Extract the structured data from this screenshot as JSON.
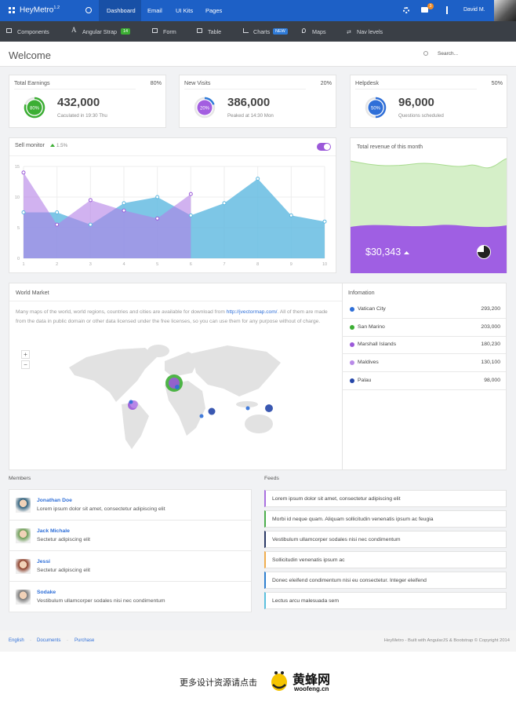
{
  "nav": {
    "brand": "HeyMetro",
    "version": "1.2",
    "items": [
      "Dashboard",
      "Email",
      "UI Kits",
      "Pages"
    ],
    "message_count": "3",
    "user": "David M."
  },
  "subnav": {
    "items": [
      {
        "label": "Components"
      },
      {
        "label": "Angular Strap",
        "badge": "14"
      },
      {
        "label": "Form"
      },
      {
        "label": "Table"
      },
      {
        "label": "Charts",
        "badge": "NEW"
      },
      {
        "label": "Maps"
      },
      {
        "label": "Nav levels"
      }
    ]
  },
  "header": {
    "title": "Welcome",
    "search_placeholder": "Search..."
  },
  "stats": [
    {
      "title": "Total Earnings",
      "percent": "80%",
      "value": "432,000",
      "note": "Caculated in 19:30 Thu",
      "color": "#3cae34"
    },
    {
      "title": "New Visits",
      "percent": "20%",
      "value": "386,000",
      "note": "Peaked at 14:30 Mon",
      "color": "#2f7bd8"
    },
    {
      "title": "Helpdesk",
      "percent": "50%",
      "value": "96,000",
      "note": "Questions scheduled",
      "color": "#2f6fd8"
    }
  ],
  "chart_data": {
    "type": "area",
    "title": "Sell monitor",
    "subtitle": "1.5%",
    "x": [
      1,
      2,
      3,
      4,
      5,
      6,
      7,
      8,
      9,
      10
    ],
    "xlim": [
      1,
      10
    ],
    "xticks": [
      1,
      2,
      3,
      4,
      5,
      6,
      7,
      8,
      9,
      10
    ],
    "ylim": [
      0,
      15
    ],
    "yticks": [
      0,
      5,
      10,
      15
    ],
    "grid": true,
    "series": [
      {
        "color": "#5db8e0",
        "values": [
          7.5,
          7.5,
          5.5,
          9,
          10,
          7,
          9,
          13,
          7,
          6
        ]
      },
      {
        "color": "#b27ee6",
        "values": [
          14,
          5.5,
          9.5,
          7.8,
          6.5,
          10.5,
          null,
          null,
          null,
          null
        ]
      }
    ]
  },
  "revenue": {
    "title": "Total revenue of this month",
    "value": "$30,343"
  },
  "world": {
    "title": "World Market",
    "text_before": "Many maps of the world, world regions, countries and cities are available for download from ",
    "link": "http://jvectormap.com/",
    "text_after": ". All of them are made from the data in public domain or other data licensed under the free licenses, so you can use them for any purpose without of charge.",
    "zoom_in": "+",
    "zoom_out": "−"
  },
  "info": {
    "title": "Infomation",
    "rows": [
      {
        "name": "Vatican City",
        "value": "293,200",
        "color": "#2f6fd8"
      },
      {
        "name": "San Marino",
        "value": "203,000",
        "color": "#3cae34"
      },
      {
        "name": "Marshall Islands",
        "value": "180,230",
        "color": "#9b59d9"
      },
      {
        "name": "Maldives",
        "value": "130,100",
        "color": "#b98ae8"
      },
      {
        "name": "Palau",
        "value": "98,000",
        "color": "#2546a8"
      }
    ]
  },
  "members": {
    "title": "Members",
    "items": [
      {
        "name": "Jonathan Doe",
        "text": "Lorem ipsum dolor sit amet, consectetur adipiscing elit"
      },
      {
        "name": "Jack Michale",
        "text": "Sectetur adipiscing elit"
      },
      {
        "name": "Jessi",
        "text": "Sectetur adipiscing elit"
      },
      {
        "name": "Sodake",
        "text": "Vestibulum ullamcorper sodales nisi nec condimentum"
      }
    ]
  },
  "feeds": {
    "title": "Feeds",
    "items": [
      {
        "text": "Lorem ipsum dolor sit amet, consectetur adipiscing elit",
        "color": "#a970e0"
      },
      {
        "text": "Morbi id neque quam. Aliquam sollicitudin venenatis ipsum ac feugia",
        "color": "#4cae4c"
      },
      {
        "text": "Vestibulum ullamcorper sodales nisi nec condimentum",
        "color": "#2b3a67"
      },
      {
        "text": "Sollicitudin venenatis ipsum ac",
        "color": "#f0ad4e"
      },
      {
        "text": "Donec eleifend condimentum nisi eu consectetur. Integer eleifend",
        "color": "#2e7fd0"
      },
      {
        "text": "Lectus arcu malesuada sem",
        "color": "#5bc0de"
      }
    ]
  },
  "footer": {
    "links": [
      "English",
      "Documents",
      "Purchase"
    ],
    "copyright": "HeyMetro - Built with AngularJS & Bootstrap © Copyright 2014"
  },
  "watermark": {
    "text": "更多设计资源请点击",
    "brand": "黄蜂网",
    "site": "woofeng.cn"
  }
}
